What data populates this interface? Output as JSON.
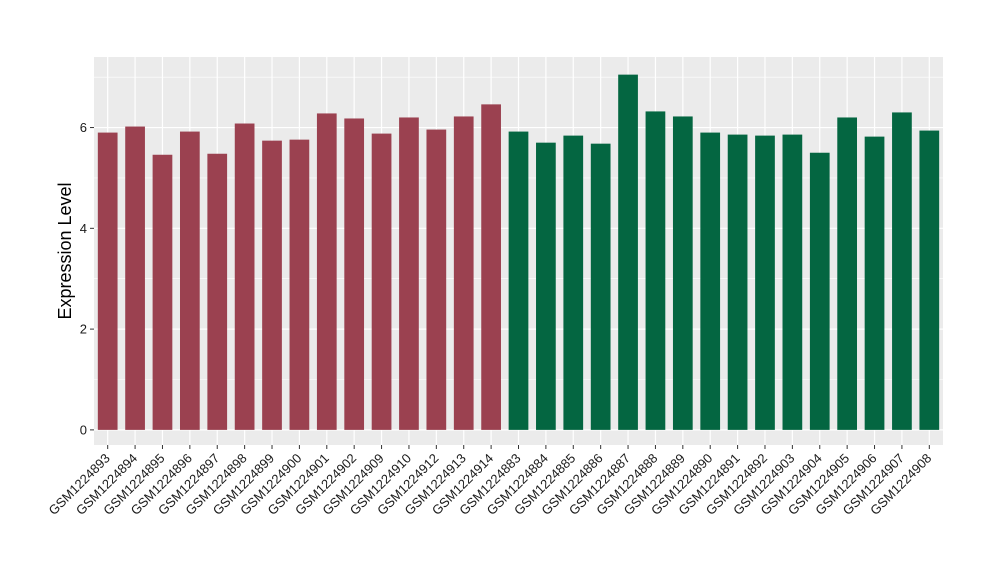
{
  "chart_data": {
    "type": "bar",
    "title": "",
    "xlabel": "",
    "ylabel": "Expression Level",
    "ylim": [
      -0.3,
      7.4
    ],
    "yticks": [
      0,
      2,
      4,
      6
    ],
    "grid": true,
    "colors": {
      "group1": "#9b4150",
      "group2": "#046641",
      "panel": "#ebebeb",
      "grid": "#ffffff"
    },
    "categories": [
      "GSM1224893",
      "GSM1224894",
      "GSM1224895",
      "GSM1224896",
      "GSM1224897",
      "GSM1224898",
      "GSM1224899",
      "GSM1224900",
      "GSM1224901",
      "GSM1224902",
      "GSM1224909",
      "GSM1224910",
      "GSM1224912",
      "GSM1224913",
      "GSM1224914",
      "GSM1224883",
      "GSM1224884",
      "GSM1224885",
      "GSM1224886",
      "GSM1224887",
      "GSM1224888",
      "GSM1224889",
      "GSM1224890",
      "GSM1224891",
      "GSM1224892",
      "GSM1224903",
      "GSM1224904",
      "GSM1224905",
      "GSM1224906",
      "GSM1224907",
      "GSM1224908"
    ],
    "values": [
      5.9,
      6.02,
      5.46,
      5.92,
      5.48,
      6.08,
      5.74,
      5.76,
      6.28,
      6.18,
      5.88,
      6.2,
      5.96,
      6.22,
      6.46,
      5.92,
      5.7,
      5.84,
      5.68,
      7.05,
      6.32,
      6.22,
      5.9,
      5.86,
      5.84,
      5.86,
      5.5,
      6.2,
      5.82,
      6.3,
      5.94
    ],
    "groups": [
      1,
      1,
      1,
      1,
      1,
      1,
      1,
      1,
      1,
      1,
      1,
      1,
      1,
      1,
      1,
      2,
      2,
      2,
      2,
      2,
      2,
      2,
      2,
      2,
      2,
      2,
      2,
      2,
      2,
      2,
      2
    ]
  }
}
